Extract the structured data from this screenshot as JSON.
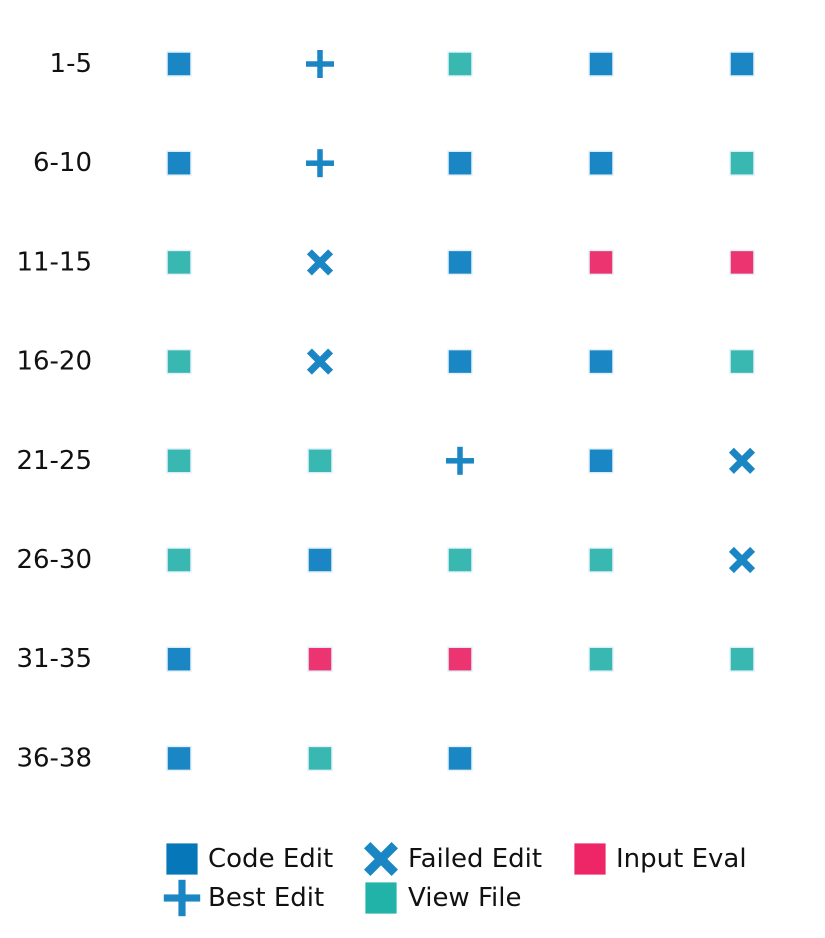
{
  "colors": {
    "code_edit": "#1a86c3",
    "best_edit": "#1a86c3",
    "failed_edit": "#1a86c3",
    "view_file": "#38b8b0",
    "input_eval": "#ec3570",
    "legend_code_edit": "#0677b8",
    "legend_view_file": "#21b3a7",
    "legend_input_eval": "#ee2566",
    "marker_edge": "#e4f1fb"
  },
  "chart_data": {
    "type": "grid",
    "title": "",
    "xlabel": "",
    "ylabel": "",
    "row_labels": [
      "1-5",
      "6-10",
      "11-15",
      "16-20",
      "21-25",
      "26-30",
      "31-35",
      "36-38"
    ],
    "columns": 5,
    "grid": false,
    "rows": [
      [
        "code_edit",
        "best_edit",
        "view_file",
        "code_edit",
        "code_edit"
      ],
      [
        "code_edit",
        "best_edit",
        "code_edit",
        "code_edit",
        "view_file"
      ],
      [
        "view_file",
        "failed_edit",
        "code_edit",
        "input_eval",
        "input_eval"
      ],
      [
        "view_file",
        "failed_edit",
        "code_edit",
        "code_edit",
        "view_file"
      ],
      [
        "view_file",
        "view_file",
        "best_edit",
        "code_edit",
        "failed_edit"
      ],
      [
        "view_file",
        "code_edit",
        "view_file",
        "view_file",
        "failed_edit"
      ],
      [
        "code_edit",
        "input_eval",
        "input_eval",
        "view_file",
        "view_file"
      ],
      [
        "code_edit",
        "view_file",
        "code_edit"
      ]
    ],
    "legend_placement": "bottom",
    "legend": [
      {
        "key": "code_edit",
        "label": "Code Edit",
        "marker": "square"
      },
      {
        "key": "failed_edit",
        "label": "Failed Edit",
        "marker": "x"
      },
      {
        "key": "input_eval",
        "label": "Input Eval",
        "marker": "square"
      },
      {
        "key": "best_edit",
        "label": "Best Edit",
        "marker": "plus"
      },
      {
        "key": "view_file",
        "label": "View File",
        "marker": "square"
      }
    ]
  }
}
